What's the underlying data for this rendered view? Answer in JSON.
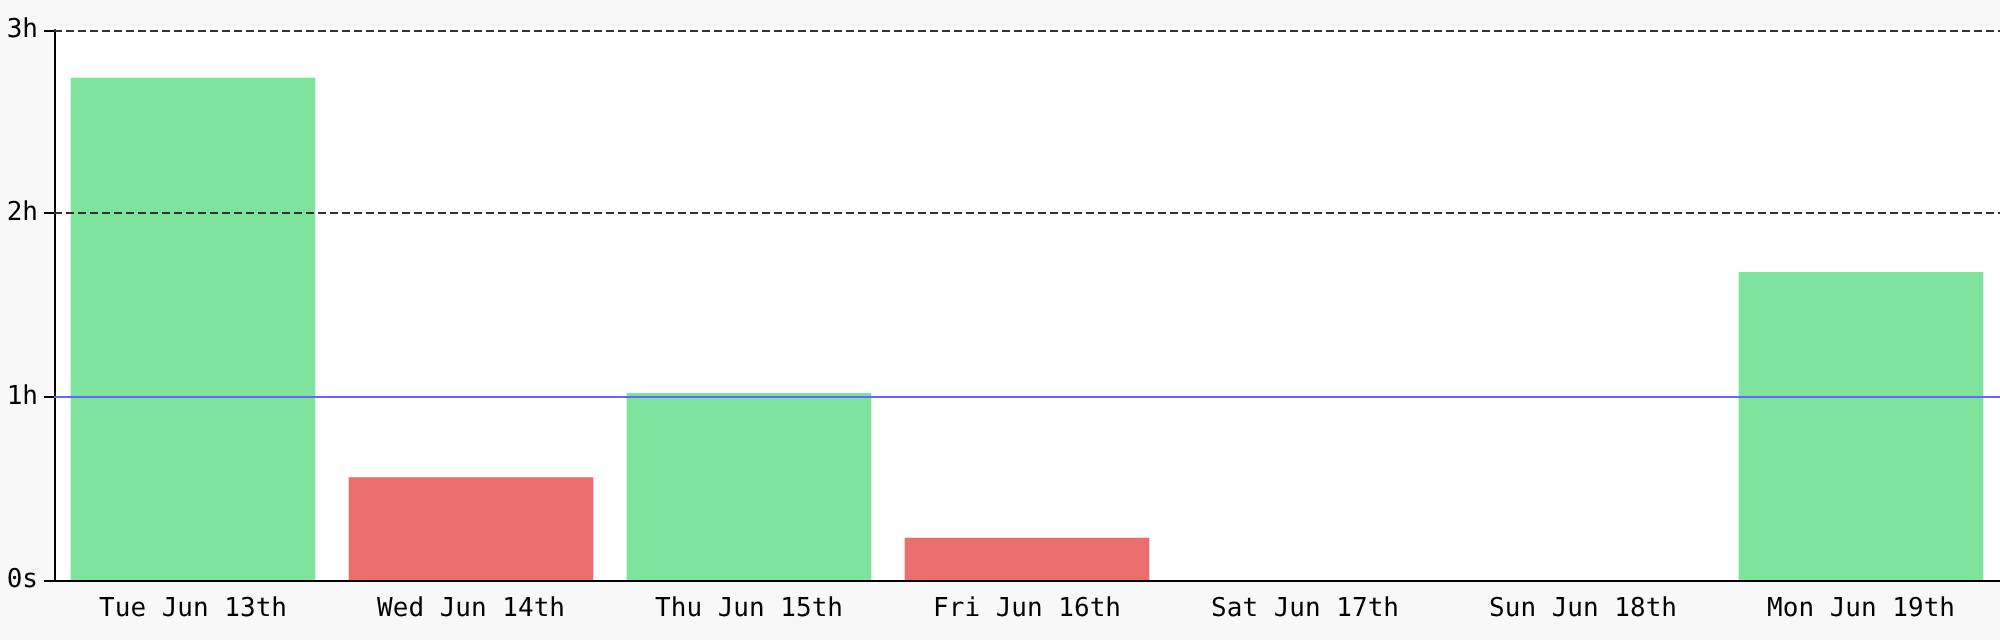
{
  "chart_data": {
    "type": "bar",
    "categories": [
      "Tue Jun 13th",
      "Wed Jun 14th",
      "Thu Jun 15th",
      "Fri Jun 16th",
      "Sat Jun 17th",
      "Sun Jun 18th",
      "Mon Jun 19th"
    ],
    "values": [
      2.74,
      0.56,
      1.02,
      0.23,
      0,
      0,
      1.68
    ],
    "colors": [
      "#7ee39d",
      "#eb6e6e",
      "#7ee39d",
      "#eb6e6e",
      "#7ee39d",
      "#7ee39d",
      "#7ee39d"
    ],
    "ylim": [
      0,
      3
    ],
    "yticks": [
      {
        "value": 0,
        "label": "0s"
      },
      {
        "value": 1,
        "label": "1h"
      },
      {
        "value": 2,
        "label": "2h"
      },
      {
        "value": 3,
        "label": "3h"
      }
    ],
    "ref_lines": [
      {
        "axis": "y",
        "value": 1,
        "label": null,
        "color": "#6666ff"
      },
      {
        "axis": "y",
        "value": 2,
        "label": null,
        "color": "#333333",
        "line_style": "dashed"
      },
      {
        "axis": "y",
        "value": 3,
        "label": null,
        "color": "#333333",
        "line_style": "dashed"
      }
    ]
  }
}
